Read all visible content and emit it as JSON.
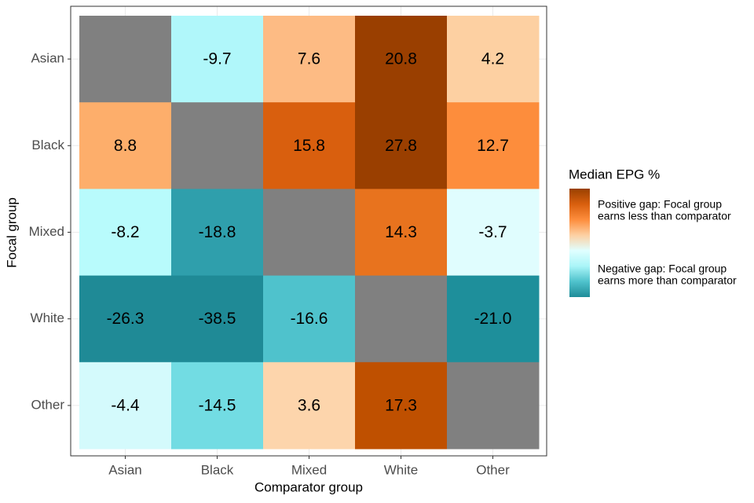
{
  "chart_data": {
    "type": "heatmap",
    "x_label": "Comparator group",
    "y_label": "Focal group",
    "x_categories": [
      "Asian",
      "Black",
      "Mixed",
      "White",
      "Other"
    ],
    "y_categories": [
      "Asian",
      "Black",
      "Mixed",
      "White",
      "Other"
    ],
    "values": [
      [
        null,
        -9.7,
        7.6,
        20.8,
        4.2
      ],
      [
        8.8,
        null,
        15.8,
        27.8,
        12.7
      ],
      [
        -8.2,
        -18.8,
        null,
        14.3,
        -3.7
      ],
      [
        -26.3,
        -38.5,
        -16.6,
        null,
        -21.0
      ],
      [
        -4.4,
        -14.5,
        3.6,
        17.3,
        null
      ]
    ],
    "value_labels": [
      [
        null,
        "-9.7",
        "7.6",
        "20.8",
        "4.2"
      ],
      [
        "8.8",
        null,
        "15.8",
        "27.8",
        "12.7"
      ],
      [
        "-8.2",
        "-18.8",
        null,
        "14.3",
        "-3.7"
      ],
      [
        "-26.3",
        "-38.5",
        "-16.6",
        null,
        "-21.0"
      ],
      [
        "-4.4",
        "-14.5",
        "3.6",
        "17.3",
        null
      ]
    ],
    "colors": [
      [
        null,
        "#b0f7fa",
        "#fdbb84",
        "#9a3f00",
        "#fdd0a2"
      ],
      [
        "#fdae6b",
        null,
        "#d95f0e",
        "#9a3f00",
        "#fd8d3c"
      ],
      [
        "#b8fbfc",
        "#2f9fac",
        null,
        "#e8731e",
        "#e0fdfe"
      ],
      [
        "#1f8a96",
        "#1f8a96",
        "#4fc2cc",
        null,
        "#1e8f9b"
      ],
      [
        "#d4fafc",
        "#72dce3",
        "#fdd5ac",
        "#bf5000",
        null
      ]
    ],
    "na_color": "#808080",
    "grid": true,
    "legend": {
      "title": "Median EPG %",
      "gradient": [
        "#994000",
        "#d95f0e",
        "#fd8d3c",
        "#fdd0a2",
        "#e0ffff",
        "#aaf5f8",
        "#4fc2cc",
        "#1e8c98"
      ],
      "positive_label": [
        "Positive gap: Focal group",
        "earns less than comparator"
      ],
      "negative_label": [
        "Negative gap: Focal group",
        "earns more than comparator"
      ]
    }
  }
}
